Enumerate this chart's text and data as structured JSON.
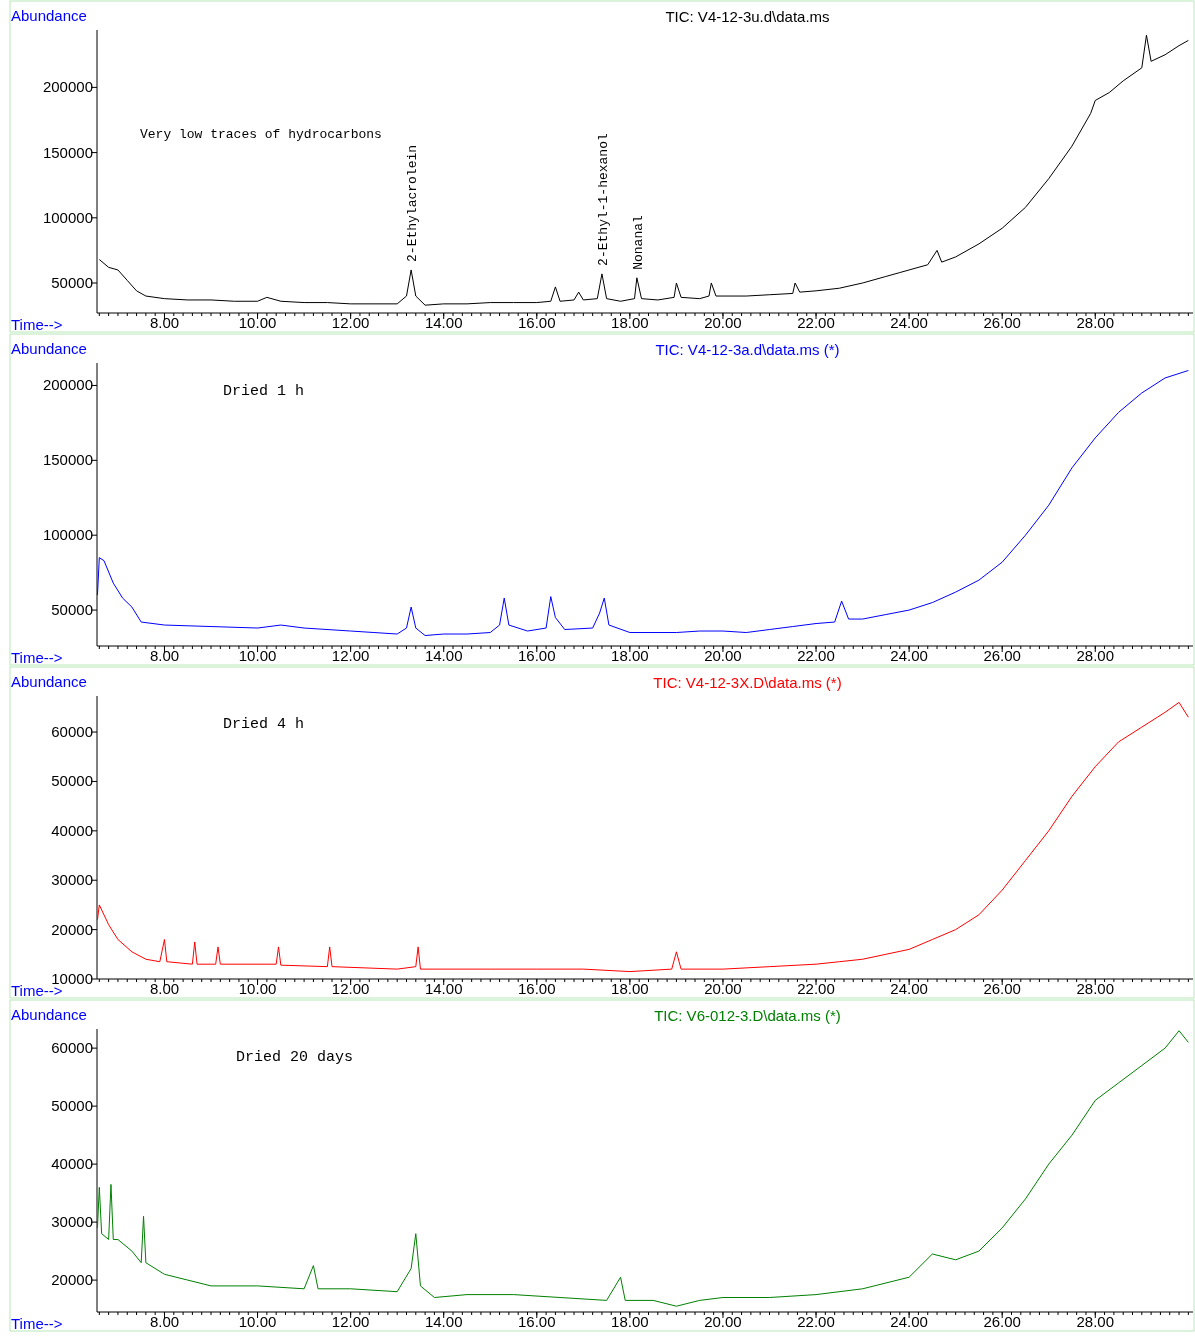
{
  "chart_data": [
    {
      "type": "line",
      "title": "TIC: V4-12-3u.d\\data.ms",
      "xlabel": "Time-->",
      "ylabel": "Abundance",
      "xlim": [
        6.55,
        30.1
      ],
      "ylim": [
        27000,
        244000
      ],
      "xticks": [
        {
          "value": 8,
          "label": "8.00"
        },
        {
          "value": 10,
          "label": "10.00"
        },
        {
          "value": 12,
          "label": "12.00"
        },
        {
          "value": 14,
          "label": "14.00"
        },
        {
          "value": 16,
          "label": "16.00"
        },
        {
          "value": 18,
          "label": "18.00"
        },
        {
          "value": 20,
          "label": "20.00"
        },
        {
          "value": 22,
          "label": "22.00"
        },
        {
          "value": 24,
          "label": "24.00"
        },
        {
          "value": 26,
          "label": "26.00"
        },
        {
          "value": 28,
          "label": "28.00"
        }
      ],
      "yticks": [
        50000,
        100000,
        150000,
        200000
      ],
      "grid": false,
      "annotations": [
        "Very low traces of hydrocarbons",
        {
          "text": "2-Ethylacrolein",
          "x": 13.3,
          "y": 60000
        },
        {
          "text": "2-Ethyl-1-hexanol",
          "x": 17.4,
          "y": 57000
        },
        {
          "text": "Nonanal",
          "x": 18.15,
          "y": 54000
        }
      ],
      "x": [
        6.6,
        6.8,
        7.0,
        7.2,
        7.4,
        7.6,
        8.0,
        8.5,
        9.0,
        9.5,
        10.0,
        10.2,
        10.5,
        11,
        11.5,
        12,
        12.5,
        13.0,
        13.2,
        13.3,
        13.4,
        13.6,
        14,
        14.5,
        15,
        15.5,
        16,
        16.3,
        16.4,
        16.5,
        16.8,
        16.9,
        17.0,
        17.3,
        17.4,
        17.5,
        17.8,
        18.1,
        18.15,
        18.25,
        18.6,
        18.95,
        19.0,
        19.1,
        19.5,
        19.7,
        19.75,
        19.85,
        20.5,
        21,
        21.5,
        21.55,
        21.65,
        22,
        22.5,
        23,
        23.5,
        23.8,
        24.0,
        24.4,
        24.6,
        24.7,
        25,
        25.5,
        26,
        26.5,
        27,
        27.5,
        27.9,
        28.0,
        28.3,
        28.6,
        29.0,
        29.1,
        29.2,
        29.5,
        29.8,
        30.0
      ],
      "series": [
        {
          "color": "#000000",
          "values": [
            68000,
            62000,
            60000,
            52000,
            44000,
            40000,
            38000,
            37000,
            37000,
            36000,
            36000,
            39000,
            36000,
            35000,
            35000,
            34000,
            34000,
            34000,
            40000,
            60000,
            40000,
            33000,
            34000,
            34000,
            35000,
            35000,
            35000,
            36000,
            47000,
            36000,
            37000,
            43000,
            37000,
            38000,
            57000,
            38000,
            36000,
            38000,
            54000,
            38000,
            37000,
            39000,
            50000,
            39000,
            38000,
            40000,
            50000,
            40000,
            40000,
            41000,
            42000,
            50000,
            43000,
            44000,
            46000,
            50000,
            55000,
            58000,
            60000,
            64000,
            75000,
            66000,
            70000,
            80000,
            92000,
            108000,
            130000,
            155000,
            180000,
            190000,
            196000,
            205000,
            215000,
            240000,
            220000,
            225000,
            232000,
            236000
          ]
        }
      ]
    },
    {
      "type": "line",
      "title": "TIC: V4-12-3a.d\\data.ms (*)",
      "xlabel": "Time-->",
      "ylabel": "Abundance",
      "xlim": [
        6.55,
        30.1
      ],
      "ylim": [
        26000,
        215000
      ],
      "xticks": [
        {
          "value": 8,
          "label": "8.00"
        },
        {
          "value": 10,
          "label": "10.00"
        },
        {
          "value": 12,
          "label": "12.00"
        },
        {
          "value": 14,
          "label": "14.00"
        },
        {
          "value": 16,
          "label": "16.00"
        },
        {
          "value": 18,
          "label": "18.00"
        },
        {
          "value": 20,
          "label": "20.00"
        },
        {
          "value": 22,
          "label": "22.00"
        },
        {
          "value": 24,
          "label": "24.00"
        },
        {
          "value": 26,
          "label": "26.00"
        },
        {
          "value": 28,
          "label": "28.00"
        }
      ],
      "yticks": [
        50000,
        100000,
        150000,
        200000
      ],
      "grid": false,
      "annotations": [
        "Dried 1 h"
      ],
      "x": [
        6.56,
        6.6,
        6.7,
        6.9,
        7.1,
        7.3,
        7.5,
        8,
        9,
        10,
        10.5,
        11,
        12,
        12.5,
        13.0,
        13.2,
        13.3,
        13.4,
        13.6,
        14,
        14.5,
        15,
        15.2,
        15.3,
        15.4,
        15.8,
        16.2,
        16.3,
        16.4,
        16.6,
        17.2,
        17.35,
        17.45,
        17.55,
        18,
        19,
        19.5,
        20,
        20.5,
        21,
        21.5,
        22,
        22.4,
        22.55,
        22.7,
        23,
        23.5,
        24,
        24.5,
        25,
        25.5,
        26,
        26.5,
        27,
        27.5,
        28,
        28.5,
        29,
        29.5,
        30
      ],
      "series": [
        {
          "color": "#0000ff",
          "values": [
            60000,
            85000,
            83000,
            68000,
            58000,
            52000,
            42000,
            40000,
            39000,
            38000,
            40000,
            38000,
            36000,
            35000,
            34000,
            38000,
            52000,
            38000,
            33000,
            34000,
            34000,
            35000,
            40000,
            58000,
            40000,
            36000,
            38000,
            59000,
            45000,
            37000,
            38000,
            48000,
            58000,
            40000,
            35000,
            35000,
            36000,
            36000,
            35000,
            37000,
            39000,
            41000,
            42000,
            56000,
            44000,
            44000,
            47000,
            50000,
            55000,
            62000,
            70000,
            82000,
            100000,
            120000,
            145000,
            165000,
            182000,
            195000,
            205000,
            210000
          ]
        }
      ]
    },
    {
      "type": "line",
      "title": "TIC: V4-12-3X.D\\data.ms (*)",
      "xlabel": "Time-->",
      "ylabel": "Abundance",
      "xlim": [
        6.55,
        30.1
      ],
      "ylim": [
        10000,
        67300
      ],
      "xticks": [
        {
          "value": 8,
          "label": "8.00"
        },
        {
          "value": 10,
          "label": "10.00"
        },
        {
          "value": 12,
          "label": "12.00"
        },
        {
          "value": 14,
          "label": "14.00"
        },
        {
          "value": 16,
          "label": "16.00"
        },
        {
          "value": 18,
          "label": "18.00"
        },
        {
          "value": 20,
          "label": "20.00"
        },
        {
          "value": 22,
          "label": "22.00"
        },
        {
          "value": 24,
          "label": "24.00"
        },
        {
          "value": 26,
          "label": "26.00"
        },
        {
          "value": 28,
          "label": "28.00"
        }
      ],
      "yticks": [
        10000,
        20000,
        30000,
        40000,
        50000,
        60000
      ],
      "grid": false,
      "annotations": [
        "Dried 4 h"
      ],
      "x": [
        6.56,
        6.6,
        6.8,
        7.0,
        7.3,
        7.6,
        7.9,
        8.0,
        8.05,
        8.6,
        8.65,
        8.7,
        9.1,
        9.15,
        9.2,
        10.4,
        10.45,
        10.5,
        11.5,
        11.55,
        11.6,
        13,
        13.4,
        13.45,
        13.5,
        15,
        16,
        17,
        18,
        18.9,
        19,
        19.1,
        20,
        21,
        22,
        22.5,
        23,
        23.5,
        24,
        24.5,
        25,
        25.5,
        26,
        26.5,
        27,
        27.5,
        28,
        28.5,
        29,
        29.5,
        29.8,
        30
      ],
      "series": [
        {
          "color": "#ff0000",
          "values": [
            22000,
            25000,
            21000,
            18000,
            15500,
            14000,
            13500,
            18000,
            13500,
            13000,
            17500,
            13000,
            13000,
            16500,
            13000,
            13000,
            16500,
            12800,
            12500,
            16500,
            12500,
            12000,
            12500,
            16500,
            12000,
            12000,
            12000,
            12000,
            11500,
            12000,
            15500,
            12000,
            12000,
            12500,
            13000,
            13500,
            14000,
            15000,
            16000,
            18000,
            20000,
            23000,
            28000,
            34000,
            40000,
            47000,
            53000,
            58000,
            61000,
            64000,
            66000,
            63000
          ]
        }
      ]
    },
    {
      "type": "line",
      "title": "TIC: V6-012-3.D\\data.ms (*)",
      "xlabel": "Time-->",
      "ylabel": "Abundance",
      "xlim": [
        6.55,
        30.1
      ],
      "ylim": [
        14500,
        63300
      ],
      "xticks": [
        {
          "value": 8,
          "label": "8.00"
        },
        {
          "value": 10,
          "label": "10.00"
        },
        {
          "value": 12,
          "label": "12.00"
        },
        {
          "value": 14,
          "label": "14.00"
        },
        {
          "value": 16,
          "label": "16.00"
        },
        {
          "value": 18,
          "label": "18.00"
        },
        {
          "value": 20,
          "label": "20.00"
        },
        {
          "value": 22,
          "label": "22.00"
        },
        {
          "value": 24,
          "label": "24.00"
        },
        {
          "value": 26,
          "label": "26.00"
        },
        {
          "value": 28,
          "label": "28.00"
        }
      ],
      "yticks": [
        20000,
        30000,
        40000,
        50000,
        60000
      ],
      "grid": false,
      "annotations": [
        "Dried 20 days"
      ],
      "x": [
        6.56,
        6.6,
        6.65,
        6.8,
        6.85,
        6.9,
        7.0,
        7.3,
        7.5,
        7.55,
        7.6,
        8,
        8.5,
        9,
        10,
        11,
        11.2,
        11.3,
        12,
        13,
        13.3,
        13.4,
        13.5,
        13.8,
        14.5,
        15.5,
        16.5,
        17.5,
        17.8,
        17.9,
        18.5,
        19,
        19.5,
        20,
        21,
        22,
        23,
        24,
        24.5,
        25,
        25.5,
        26,
        26.5,
        27,
        27.5,
        28,
        28.5,
        29,
        29.5,
        29.8,
        30
      ],
      "series": [
        {
          "color": "#008000",
          "values": [
            29000,
            36000,
            28000,
            27000,
            36500,
            27000,
            27000,
            25000,
            23000,
            31000,
            23000,
            21000,
            20000,
            19000,
            19000,
            18500,
            22500,
            18500,
            18500,
            18000,
            22000,
            28000,
            19000,
            17000,
            17500,
            17500,
            17000,
            16500,
            20500,
            16500,
            16500,
            15500,
            16500,
            17000,
            17000,
            17500,
            18500,
            20500,
            24500,
            23500,
            25000,
            29000,
            34000,
            40000,
            45000,
            51000,
            54000,
            57000,
            60000,
            63000,
            61000
          ]
        }
      ]
    }
  ]
}
